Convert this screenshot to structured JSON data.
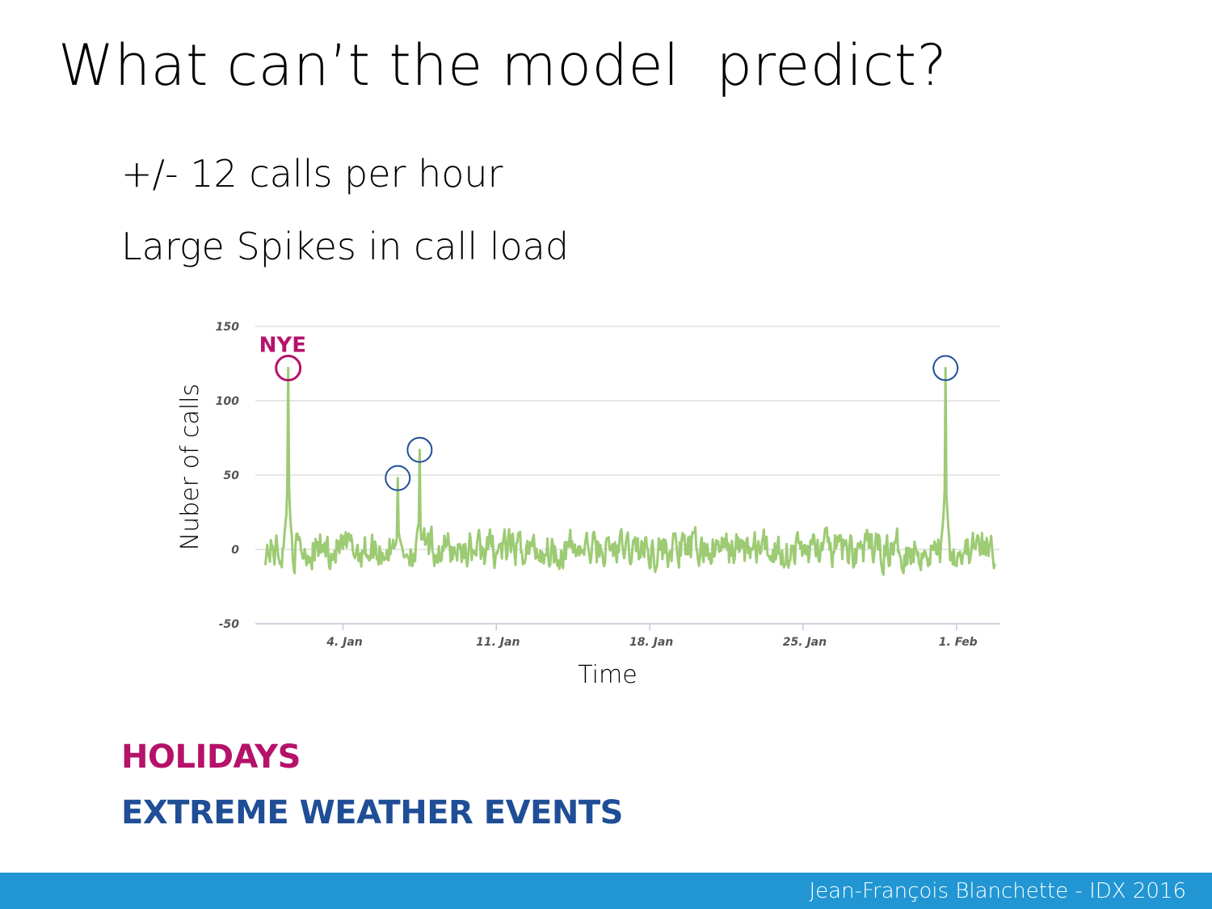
{
  "slide": {
    "title": "What can’t the model  predict?",
    "bullets": [
      "+/- 12 calls per hour",
      "Large Spikes in call load"
    ],
    "legend": [
      {
        "label": "HOLIDAYS",
        "color": "#b5126a"
      },
      {
        "label": "EXTREME WEATHER EVENTS",
        "color": "#1f4e96"
      }
    ],
    "footer": "Jean-François Blanchette - IDX 2016",
    "footer_color": "#2196d3"
  },
  "chart_data": {
    "type": "line",
    "title": "",
    "xlabel": "Time",
    "ylabel": "Nuber of calls",
    "ylim": [
      -50,
      150
    ],
    "yticks": [
      -50,
      0,
      50,
      100,
      150
    ],
    "xlim": [
      "2015-12-31",
      "2016-02-03"
    ],
    "xticks": [
      {
        "date": "2016-01-04",
        "label": "4. Jan"
      },
      {
        "date": "2016-01-11",
        "label": "11. Jan"
      },
      {
        "date": "2016-01-18",
        "label": "18. Jan"
      },
      {
        "date": "2016-01-25",
        "label": "25. Jan"
      },
      {
        "date": "2016-02-01",
        "label": "1. Feb"
      }
    ],
    "grid": true,
    "line_color": "#9dcb74",
    "noise_amplitude": 12,
    "spikes": [
      {
        "date": "2016-01-01",
        "value": 122,
        "kind": "holiday",
        "label": "NYE"
      },
      {
        "date": "2016-01-06",
        "value": 48,
        "kind": "weather"
      },
      {
        "date": "2016-01-07",
        "value": 67,
        "kind": "weather"
      },
      {
        "date": "2016-01-31",
        "value": 122,
        "kind": "weather"
      }
    ],
    "annotation_colors": {
      "holiday": "#b5126a",
      "weather": "#1f4e96"
    }
  }
}
